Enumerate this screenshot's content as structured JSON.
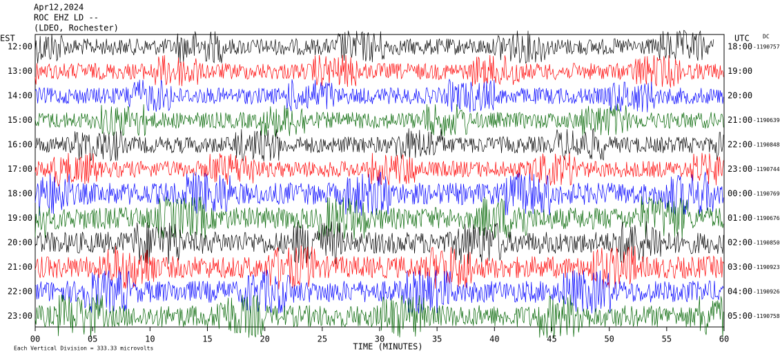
{
  "header": {
    "date": "Apr12,2024",
    "station": "ROC EHZ LD --",
    "network": "(LDEO, Rochester)"
  },
  "left_zone": "EST",
  "right_zone": "UTC",
  "dc_label": "DC",
  "rows": [
    {
      "est": "12:00",
      "utc": "18:00",
      "dc": "-1190757",
      "color": "#000000"
    },
    {
      "est": "13:00",
      "utc": "19:00",
      "dc": null,
      "color": "#ff0000"
    },
    {
      "est": "14:00",
      "utc": "20:00",
      "dc": null,
      "color": "#0000ff"
    },
    {
      "est": "15:00",
      "utc": "21:00",
      "dc": "-1190639",
      "color": "#006400"
    },
    {
      "est": "16:00",
      "utc": "22:00",
      "dc": "-1190848",
      "color": "#000000"
    },
    {
      "est": "17:00",
      "utc": "23:00",
      "dc": "-1190744",
      "color": "#ff0000"
    },
    {
      "est": "18:00",
      "utc": "00:00",
      "dc": "-1190769",
      "color": "#0000ff"
    },
    {
      "est": "19:00",
      "utc": "01:00",
      "dc": "-1190676",
      "color": "#006400"
    },
    {
      "est": "20:00",
      "utc": "02:00",
      "dc": "-1190850",
      "color": "#000000"
    },
    {
      "est": "21:00",
      "utc": "03:00",
      "dc": "-1190923",
      "color": "#ff0000"
    },
    {
      "est": "22:00",
      "utc": "04:00",
      "dc": "-1190926",
      "color": "#0000ff"
    },
    {
      "est": "23:00",
      "utc": "05:00",
      "dc": "-1190758",
      "color": "#006400"
    }
  ],
  "x_ticks": [
    "00",
    "05",
    "10",
    "15",
    "20",
    "25",
    "30",
    "35",
    "40",
    "45",
    "50",
    "55",
    "60"
  ],
  "x_label": "TIME (MINUTES)",
  "footer": "Each Vertical Division =  333.33 microvolts"
}
